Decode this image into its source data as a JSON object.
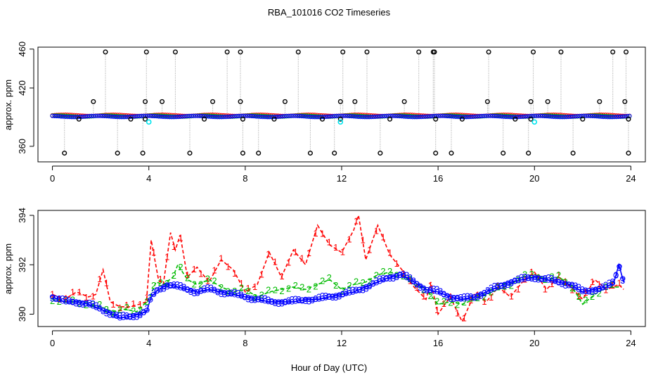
{
  "figure": {
    "title": "RBA_101016  CO2 Timeseries",
    "xlabel": "Hour of Day (UTC)"
  },
  "colors": {
    "series1": "#ff0000",
    "series2": "#00bb00",
    "series3": "#0000ff",
    "outlier": "#000000",
    "cyan": "#00e5ee",
    "connector": "#a0a0a0"
  },
  "chart_data": [
    {
      "type": "scatter",
      "panel": "top",
      "ylabel": "approx. ppm",
      "xlim": [
        -0.6,
        24.6
      ],
      "ylim": [
        344,
        462
      ],
      "xticks": [
        0,
        4,
        8,
        12,
        16,
        20,
        24
      ],
      "yticks": [
        360,
        420,
        460
      ],
      "grid": false,
      "legend": "none",
      "baseline_ppm": 391,
      "outliers": {
        "name": "outlier readings",
        "points": [
          [
            1.7,
            406
          ],
          [
            2.2,
            457
          ],
          [
            3.85,
            406
          ],
          [
            3.9,
            457
          ],
          [
            4.55,
            406
          ],
          [
            5.1,
            457
          ],
          [
            6.65,
            406
          ],
          [
            7.25,
            457
          ],
          [
            7.8,
            406
          ],
          [
            7.8,
            457
          ],
          [
            9.65,
            406
          ],
          [
            10.2,
            457
          ],
          [
            11.95,
            406
          ],
          [
            12.05,
            457
          ],
          [
            12.55,
            406
          ],
          [
            13.05,
            457
          ],
          [
            14.6,
            406
          ],
          [
            15.2,
            457
          ],
          [
            15.8,
            457
          ],
          [
            15.85,
            457
          ],
          [
            18.05,
            406
          ],
          [
            18.1,
            457
          ],
          [
            19.85,
            406
          ],
          [
            19.95,
            457
          ],
          [
            20.55,
            406
          ],
          [
            21.1,
            457
          ],
          [
            22.7,
            406
          ],
          [
            23.25,
            457
          ],
          [
            23.75,
            406
          ],
          [
            23.8,
            457
          ],
          [
            0.5,
            353
          ],
          [
            2.7,
            353
          ],
          [
            3.75,
            353
          ],
          [
            5.7,
            353
          ],
          [
            7.9,
            353
          ],
          [
            8.55,
            353
          ],
          [
            10.7,
            353
          ],
          [
            11.7,
            353
          ],
          [
            13.6,
            353
          ],
          [
            15.9,
            353
          ],
          [
            16.55,
            353
          ],
          [
            18.7,
            353
          ],
          [
            19.75,
            353
          ],
          [
            21.6,
            353
          ],
          [
            23.9,
            353
          ],
          [
            1.1,
            388
          ],
          [
            3.25,
            388
          ],
          [
            3.85,
            388
          ],
          [
            6.3,
            388
          ],
          [
            7.9,
            388
          ],
          [
            9.2,
            388
          ],
          [
            11.2,
            388
          ],
          [
            11.95,
            388
          ],
          [
            14.0,
            388
          ],
          [
            15.9,
            388
          ],
          [
            17.0,
            388
          ],
          [
            19.2,
            388
          ],
          [
            19.85,
            388
          ],
          [
            22.0,
            388
          ],
          [
            23.9,
            388
          ]
        ]
      },
      "cyan_points": [
        [
          4.0,
          385
        ],
        [
          11.95,
          385
        ],
        [
          20.0,
          385
        ]
      ]
    },
    {
      "type": "line",
      "panel": "bottom",
      "ylabel": "approx. ppm",
      "xlim": [
        -0.6,
        24.6
      ],
      "ylim": [
        389.5,
        394.2
      ],
      "xticks": [
        0,
        4,
        8,
        12,
        16,
        20,
        24
      ],
      "yticks": [
        390,
        392,
        394
      ],
      "grid": false,
      "legend": "none",
      "series": [
        {
          "name": "1",
          "marker": "1",
          "points": [
            [
              0,
              390.8
            ],
            [
              0.5,
              390.6
            ],
            [
              1,
              390.9
            ],
            [
              1.5,
              390.7
            ],
            [
              1.8,
              390.8
            ],
            [
              2.1,
              391.8
            ],
            [
              2.4,
              390.5
            ],
            [
              2.8,
              390.3
            ],
            [
              3.2,
              390.3
            ],
            [
              3.6,
              390.4
            ],
            [
              3.9,
              390.5
            ],
            [
              4.1,
              393.0
            ],
            [
              4.4,
              391.4
            ],
            [
              4.6,
              391.2
            ],
            [
              4.9,
              393.3
            ],
            [
              5.1,
              392.6
            ],
            [
              5.3,
              393.2
            ],
            [
              5.6,
              391.5
            ],
            [
              6,
              391.9
            ],
            [
              6.5,
              391.3
            ],
            [
              7,
              392.2
            ],
            [
              7.5,
              391.8
            ],
            [
              8,
              390.9
            ],
            [
              8.5,
              391.2
            ],
            [
              9,
              392.5
            ],
            [
              9.5,
              391.5
            ],
            [
              10,
              392.6
            ],
            [
              10.5,
              392.0
            ],
            [
              11,
              393.6
            ],
            [
              11.5,
              392.8
            ],
            [
              12,
              392.5
            ],
            [
              12.5,
              393.4
            ],
            [
              12.7,
              394.0
            ],
            [
              13,
              392.2
            ],
            [
              13.5,
              393.6
            ],
            [
              14,
              392.4
            ],
            [
              14.5,
              391.8
            ],
            [
              15,
              391.1
            ],
            [
              15.5,
              390.6
            ],
            [
              15.7,
              391.3
            ],
            [
              16,
              390.0
            ],
            [
              16.5,
              390.7
            ],
            [
              17,
              389.7
            ],
            [
              17.5,
              390.8
            ],
            [
              18,
              390.5
            ],
            [
              18.5,
              391.1
            ],
            [
              19,
              390.7
            ],
            [
              19.5,
              391.3
            ],
            [
              20,
              391.7
            ],
            [
              20.5,
              391.0
            ],
            [
              21,
              391.5
            ],
            [
              21.5,
              391.1
            ],
            [
              22,
              390.6
            ],
            [
              22.5,
              391.4
            ],
            [
              23,
              391.0
            ],
            [
              23.5,
              391.2
            ],
            [
              23.7,
              391.0
            ]
          ]
        },
        {
          "name": "2",
          "marker": "2",
          "points": [
            [
              0,
              390.6
            ],
            [
              0.5,
              390.5
            ],
            [
              1,
              390.5
            ],
            [
              1.5,
              390.4
            ],
            [
              2,
              390.3
            ],
            [
              2.5,
              390.1
            ],
            [
              3,
              390.2
            ],
            [
              3.5,
              390.1
            ],
            [
              4,
              390.6
            ],
            [
              4.3,
              391.3
            ],
            [
              4.6,
              391.2
            ],
            [
              5,
              391.5
            ],
            [
              5.2,
              392.0
            ],
            [
              5.6,
              391.4
            ],
            [
              6,
              391.2
            ],
            [
              6.5,
              391.4
            ],
            [
              7,
              391.1
            ],
            [
              7.5,
              390.9
            ],
            [
              8,
              391.0
            ],
            [
              8.5,
              390.7
            ],
            [
              9,
              390.9
            ],
            [
              9.5,
              391.0
            ],
            [
              10,
              391.1
            ],
            [
              10.5,
              391.0
            ],
            [
              11,
              391.2
            ],
            [
              11.5,
              391.4
            ],
            [
              12,
              391.0
            ],
            [
              12.5,
              391.2
            ],
            [
              13,
              391.3
            ],
            [
              13.5,
              391.6
            ],
            [
              14,
              391.7
            ],
            [
              14.5,
              391.6
            ],
            [
              15,
              391.2
            ],
            [
              15.5,
              391.0
            ],
            [
              16,
              390.4
            ],
            [
              16.5,
              390.5
            ],
            [
              17,
              390.4
            ],
            [
              17.5,
              390.6
            ],
            [
              18,
              390.8
            ],
            [
              18.5,
              391.0
            ],
            [
              19,
              391.2
            ],
            [
              19.5,
              391.5
            ],
            [
              20,
              391.6
            ],
            [
              20.5,
              391.4
            ],
            [
              21,
              391.5
            ],
            [
              21.5,
              391.2
            ],
            [
              22,
              390.4
            ],
            [
              22.5,
              390.8
            ],
            [
              23,
              391.1
            ],
            [
              23.5,
              391.1
            ]
          ]
        },
        {
          "name": "3",
          "marker": "3",
          "points": [
            [
              0,
              390.7
            ],
            [
              0.5,
              390.5
            ],
            [
              1,
              390.5
            ],
            [
              1.5,
              390.4
            ],
            [
              2,
              390.2
            ],
            [
              2.5,
              390.0
            ],
            [
              2.8,
              389.85
            ],
            [
              3.2,
              389.9
            ],
            [
              3.6,
              390.0
            ],
            [
              3.9,
              390.1
            ],
            [
              4.1,
              390.7
            ],
            [
              4.4,
              391.0
            ],
            [
              4.8,
              391.2
            ],
            [
              5.2,
              391.1
            ],
            [
              5.6,
              391.0
            ],
            [
              6,
              390.9
            ],
            [
              6.5,
              391.0
            ],
            [
              7,
              390.9
            ],
            [
              7.5,
              390.8
            ],
            [
              8,
              390.7
            ],
            [
              8.5,
              390.6
            ],
            [
              9,
              390.5
            ],
            [
              9.5,
              390.5
            ],
            [
              10,
              390.5
            ],
            [
              10.5,
              390.6
            ],
            [
              11,
              390.6
            ],
            [
              11.5,
              390.7
            ],
            [
              12,
              390.8
            ],
            [
              12.5,
              390.9
            ],
            [
              13,
              391.1
            ],
            [
              13.5,
              391.3
            ],
            [
              14,
              391.5
            ],
            [
              14.5,
              391.6
            ],
            [
              15,
              391.3
            ],
            [
              15.5,
              391.0
            ],
            [
              16,
              390.9
            ],
            [
              16.5,
              390.7
            ],
            [
              17,
              390.6
            ],
            [
              17.5,
              390.7
            ],
            [
              18,
              390.9
            ],
            [
              18.5,
              391.1
            ],
            [
              19,
              391.3
            ],
            [
              19.5,
              391.4
            ],
            [
              20,
              391.5
            ],
            [
              20.5,
              391.4
            ],
            [
              21,
              391.3
            ],
            [
              21.5,
              391.2
            ],
            [
              22,
              390.9
            ],
            [
              22.5,
              391.0
            ],
            [
              23,
              391.1
            ],
            [
              23.3,
              391.3
            ],
            [
              23.5,
              392.0
            ],
            [
              23.7,
              391.3
            ]
          ]
        }
      ]
    }
  ]
}
